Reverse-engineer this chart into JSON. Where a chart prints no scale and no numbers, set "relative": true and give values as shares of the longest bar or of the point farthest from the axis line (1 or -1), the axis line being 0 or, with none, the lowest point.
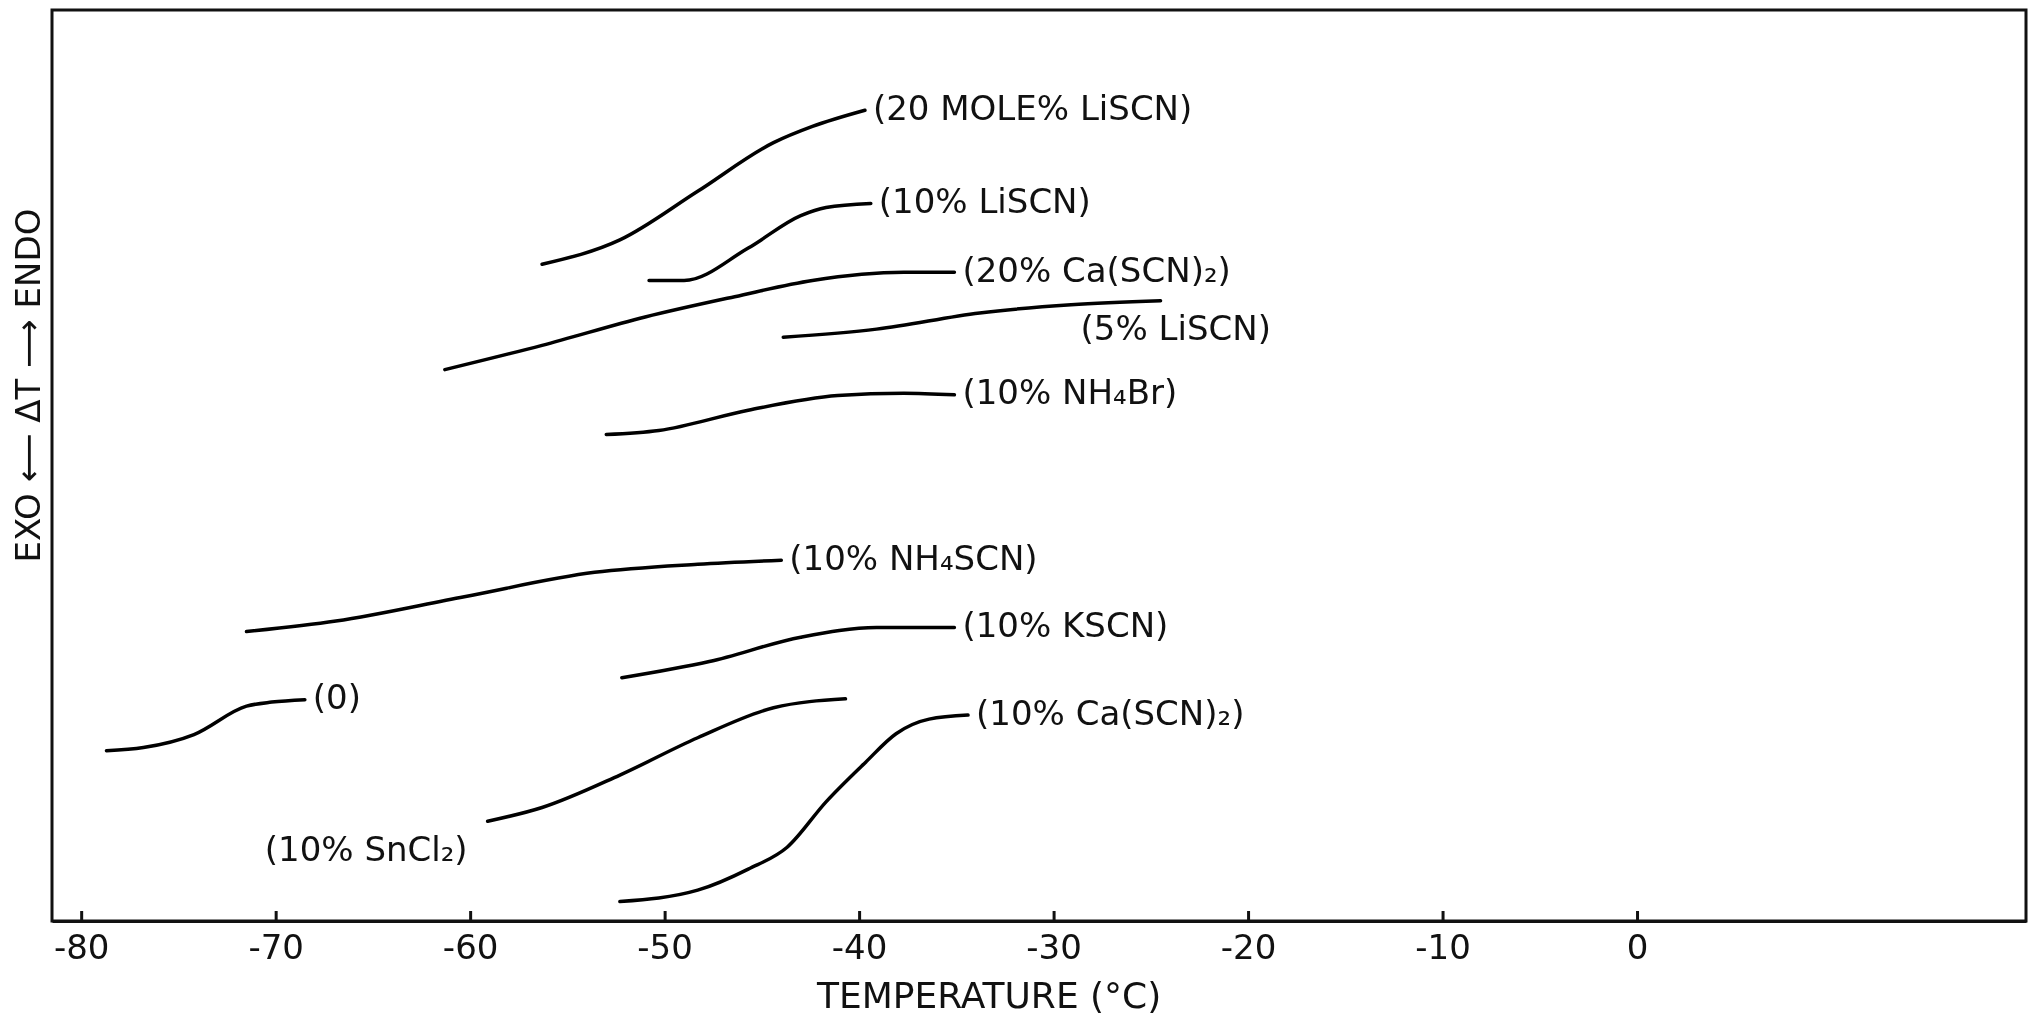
{
  "chart_data": {
    "type": "line",
    "relative": true,
    "xlabel": "TEMPERATURE (°C)",
    "ylabel": "EXO ⟵ ΔT ⟶ ENDO",
    "xlim": [
      -81.5,
      20
    ],
    "xticks": [
      -80,
      -70,
      -60,
      -50,
      -40,
      -30,
      -20,
      -10,
      0
    ],
    "marker": "none",
    "line_style": "solid",
    "series": [
      {
        "name": "(20 MOLE% LiSCN)",
        "color": "#000000",
        "x": [
          -56.3,
          -52.3,
          -48.3,
          -44.4,
          -42.4,
          -39.7
        ],
        "values": [
          0.81,
          0.84,
          0.9,
          0.96,
          0.98,
          1.0
        ]
      },
      {
        "name": "(10% LiSCN)",
        "color": "#000000",
        "x": [
          -50.8,
          -49,
          -45.7,
          -43,
          -41.7,
          -39.4
        ],
        "values": [
          0.79,
          0.79,
          0.83,
          0.87,
          0.88,
          0.885
        ]
      },
      {
        "name": "(20% Ca(SCN)₂)",
        "color": "#000000",
        "x": [
          -61.3,
          -56.3,
          -51,
          -46.4,
          -42.4,
          -37.7,
          -35.1
        ],
        "values": [
          0.68,
          0.71,
          0.745,
          0.77,
          0.79,
          0.8,
          0.8
        ]
      },
      {
        "name": "(5% LiSCN)",
        "color": "#000000",
        "x": [
          -43.9,
          -39.1,
          -33.8,
          -29.1,
          -24.5
        ],
        "values": [
          0.72,
          0.73,
          0.75,
          0.76,
          0.765
        ]
      },
      {
        "name": "(10% NH₄Br)",
        "color": "#000000",
        "x": [
          -53,
          -50.3,
          -45.7,
          -41.1,
          -37.7,
          -35.1
        ],
        "values": [
          0.6,
          0.605,
          0.63,
          0.648,
          0.651,
          0.649
        ]
      },
      {
        "name": "(10% NH₄SCN)",
        "color": "#000000",
        "x": [
          -71.5,
          -66.9,
          -60.3,
          -53.6,
          -48.3,
          -44
        ],
        "values": [
          0.357,
          0.37,
          0.4,
          0.43,
          0.44,
          0.445
        ]
      },
      {
        "name": "(10% KSCN)",
        "color": "#000000",
        "x": [
          -52.2,
          -47.7,
          -43,
          -39.1,
          -35.1
        ],
        "values": [
          0.3,
          0.32,
          0.35,
          0.362,
          0.362
        ]
      },
      {
        "name": "(0)",
        "color": "#000000",
        "x": [
          -78.7,
          -76.8,
          -74.2,
          -71.5,
          -70.2,
          -68.5
        ],
        "values": [
          0.21,
          0.214,
          0.23,
          0.265,
          0.27,
          0.273
        ]
      },
      {
        "name": "(10% SnCl₂)",
        "color": "#000000",
        "x": [
          -59.1,
          -56.3,
          -52.3,
          -48.3,
          -44.4,
          -40.7
        ],
        "values": [
          0.123,
          0.14,
          0.18,
          0.226,
          0.263,
          0.274
        ]
      },
      {
        "name": "(10% Ca(SCN)₂)",
        "color": "#000000",
        "x": [
          -52.3,
          -48.3,
          -45.7,
          -43.7,
          -41.7,
          -39.7,
          -38.1,
          -36.4,
          -34.4
        ],
        "values": [
          0.024,
          0.038,
          0.064,
          0.091,
          0.147,
          0.195,
          0.231,
          0.249,
          0.254
        ]
      }
    ]
  }
}
